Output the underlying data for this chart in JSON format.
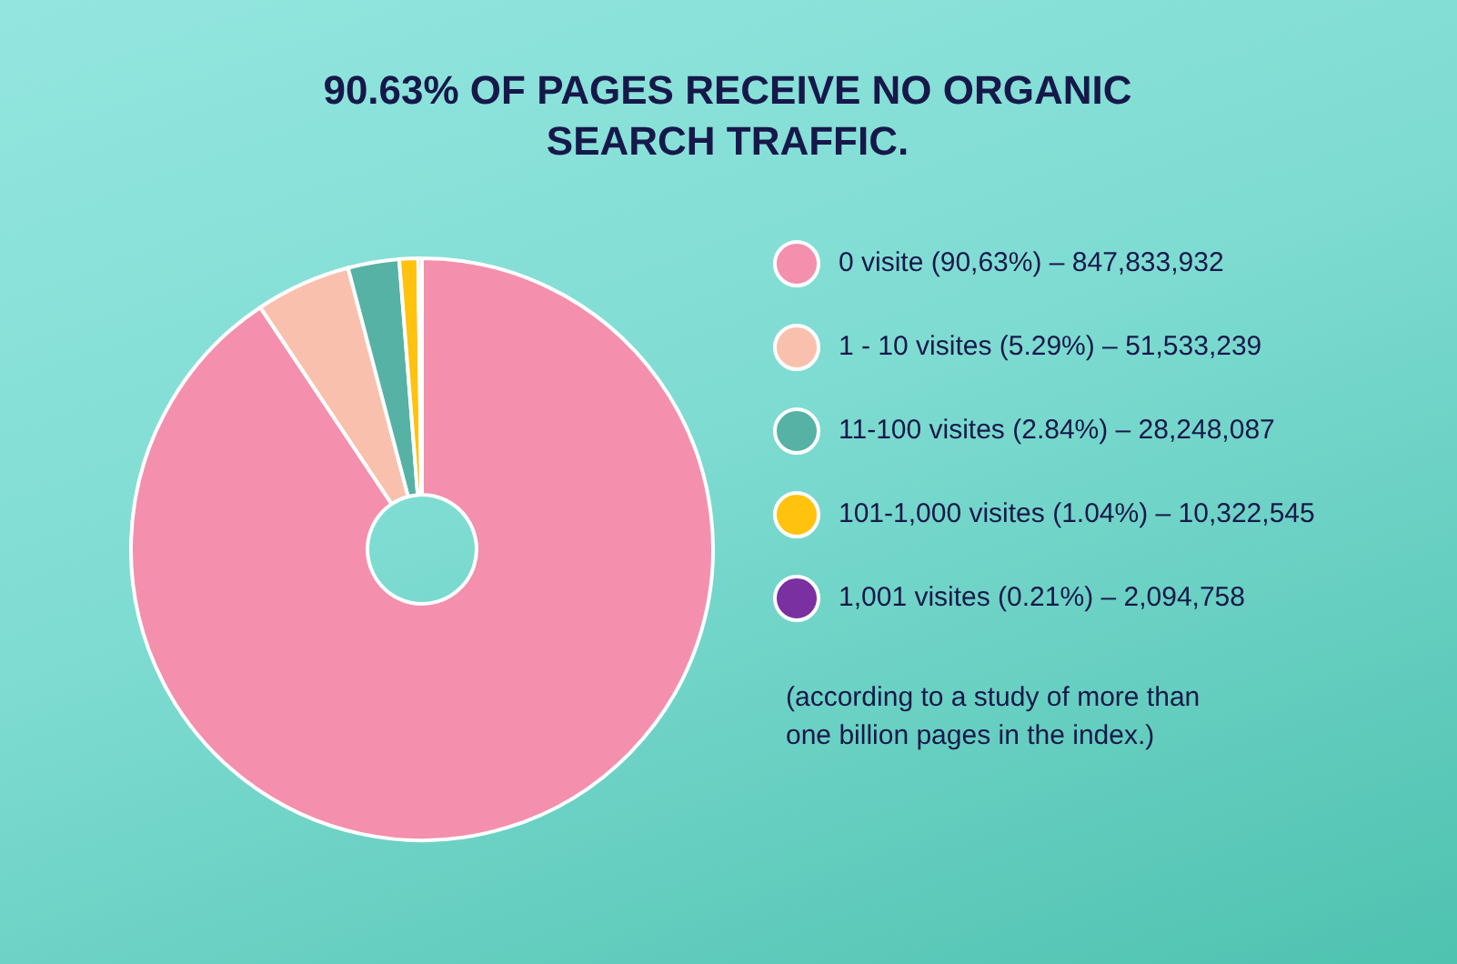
{
  "chart_data": {
    "type": "donut",
    "title": "90.63% OF PAGES RECEIVE NO ORGANIC SEARCH TRAFFIC.",
    "categories": [
      "0 visite (90,63%) – 847,833,932",
      "1 - 10 visites (5.29%) – 51,533,239",
      "11-100 visites (2.84%) – 28,248,087",
      "101-1,000 visites (1.04%) – 10,322,545",
      "1,001 visites (0.21%) – 2,094,758"
    ],
    "values": [
      90.63,
      5.29,
      2.84,
      1.04,
      0.21
    ],
    "colors": [
      "#f48fad",
      "#f9c1ad",
      "#55b2a5",
      "#ffc20e",
      "#7a30a0"
    ],
    "legend": "right",
    "annotations": [
      "(according to a study of more than one billion pages in the index.)"
    ]
  }
}
